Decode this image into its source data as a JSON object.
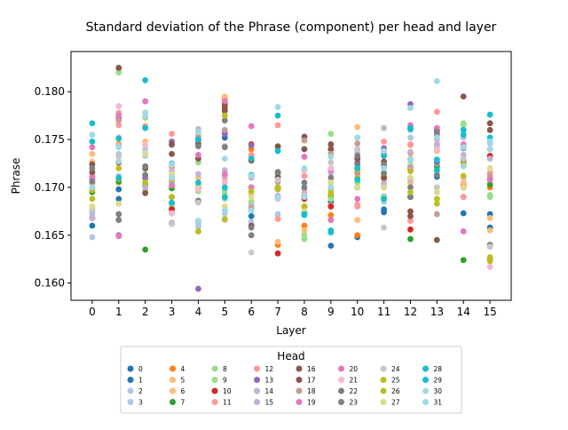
{
  "chart_data": {
    "type": "scatter",
    "title": "Standard deviation of the Phrase (component) per head and layer",
    "xlabel": "Layer",
    "ylabel": "Phrase",
    "xlim": [
      -0.8,
      15.8
    ],
    "ylim": [
      0.1582,
      0.1842
    ],
    "xticks": [
      "0",
      "1",
      "2",
      "3",
      "4",
      "5",
      "6",
      "7",
      "8",
      "9",
      "10",
      "11",
      "12",
      "13",
      "14",
      "15"
    ],
    "yticks": [
      "0.160",
      "0.165",
      "0.170",
      "0.175",
      "0.180"
    ],
    "ytick_values": [
      0.16,
      0.165,
      0.17,
      0.175,
      0.18
    ],
    "legend": {
      "title": "Head",
      "placement": "below",
      "ncol": 8,
      "entries": [
        {
          "label": "0",
          "color": "#1f77b4"
        },
        {
          "label": "1",
          "color": "#1f77b4"
        },
        {
          "label": "2",
          "color": "#aec7e8"
        },
        {
          "label": "3",
          "color": "#aec7e8"
        },
        {
          "label": "4",
          "color": "#ff7f0e"
        },
        {
          "label": "5",
          "color": "#ffbb78"
        },
        {
          "label": "6",
          "color": "#ffbb78"
        },
        {
          "label": "7",
          "color": "#2ca02c"
        },
        {
          "label": "8",
          "color": "#98df8a"
        },
        {
          "label": "9",
          "color": "#98df8a"
        },
        {
          "label": "10",
          "color": "#d62728"
        },
        {
          "label": "11",
          "color": "#ff9896"
        },
        {
          "label": "12",
          "color": "#ff9896"
        },
        {
          "label": "13",
          "color": "#9467bd"
        },
        {
          "label": "14",
          "color": "#c5b0d5"
        },
        {
          "label": "15",
          "color": "#c5b0d5"
        },
        {
          "label": "16",
          "color": "#8c564b"
        },
        {
          "label": "17",
          "color": "#8c564b"
        },
        {
          "label": "18",
          "color": "#c49c94"
        },
        {
          "label": "19",
          "color": "#e377c2"
        },
        {
          "label": "20",
          "color": "#e377c2"
        },
        {
          "label": "21",
          "color": "#f7b6d2"
        },
        {
          "label": "22",
          "color": "#7f7f7f"
        },
        {
          "label": "23",
          "color": "#7f7f7f"
        },
        {
          "label": "24",
          "color": "#c7c7c7"
        },
        {
          "label": "25",
          "color": "#bcbd22"
        },
        {
          "label": "26",
          "color": "#bcbd22"
        },
        {
          "label": "27",
          "color": "#dbdb8d"
        },
        {
          "label": "28",
          "color": "#17becf"
        },
        {
          "label": "29",
          "color": "#17becf"
        },
        {
          "label": "30",
          "color": "#9edae5"
        },
        {
          "label": "31",
          "color": "#9edae5"
        }
      ]
    },
    "series_by_layer": [
      [
        0.1668,
        0.166,
        0.1648,
        0.1672,
        0.1708,
        0.1735,
        0.1727,
        0.1695,
        0.1712,
        0.1715,
        0.1668,
        0.1712,
        0.1748,
        0.1705,
        0.1675,
        0.1668,
        0.1724,
        0.1716,
        0.17,
        0.1742,
        0.171,
        0.1703,
        0.172,
        0.1706,
        0.1677,
        0.1697,
        0.1688,
        0.168,
        0.1748,
        0.1767,
        0.1755,
        0.17
      ],
      [
        0.1688,
        0.1698,
        0.1735,
        0.1712,
        0.1745,
        0.1744,
        0.1705,
        0.1706,
        0.182,
        0.1823,
        0.1726,
        0.1765,
        0.1778,
        0.165,
        0.1752,
        0.1743,
        0.1825,
        0.1772,
        0.177,
        0.1649,
        0.1775,
        0.1785,
        0.1672,
        0.1666,
        0.1732,
        0.1709,
        0.172,
        0.1683,
        0.171,
        0.1751,
        0.1742,
        0.1727
      ],
      [
        0.1702,
        0.171,
        0.1733,
        0.174,
        0.1695,
        0.1705,
        0.1748,
        0.1635,
        0.1719,
        0.1704,
        0.1722,
        0.1764,
        0.1712,
        0.179,
        0.1698,
        0.17,
        0.1694,
        0.172,
        0.1778,
        0.1712,
        0.179,
        0.1744,
        0.1722,
        0.1713,
        0.1736,
        0.1773,
        0.1705,
        0.1735,
        0.1812,
        0.1762,
        0.1774,
        0.1778
      ],
      [
        0.1705,
        0.1683,
        0.1704,
        0.1744,
        0.1673,
        0.1682,
        0.1714,
        0.1699,
        0.1678,
        0.168,
        0.1677,
        0.1756,
        0.1721,
        0.1748,
        0.1711,
        0.1717,
        0.1745,
        0.1735,
        0.1663,
        0.1684,
        0.1702,
        0.1673,
        0.169,
        0.1662,
        0.1662,
        0.169,
        0.1708,
        0.1714,
        0.1684,
        0.1725,
        0.1724,
        0.171
      ],
      [
        0.1686,
        0.175,
        0.1659,
        0.1662,
        0.1703,
        0.1757,
        0.171,
        0.17,
        0.1696,
        0.1726,
        0.1665,
        0.1744,
        0.1752,
        0.1594,
        0.1761,
        0.1714,
        0.173,
        0.1746,
        0.1753,
        0.1734,
        0.17,
        0.1698,
        0.1686,
        0.1743,
        0.1684,
        0.1654,
        0.1654,
        0.1702,
        0.1705,
        0.175,
        0.1665,
        0.1758
      ],
      [
        0.1752,
        0.1757,
        0.1673,
        0.1698,
        0.1793,
        0.1795,
        0.1783,
        0.1782,
        0.1688,
        0.1695,
        0.1787,
        0.1743,
        0.171,
        0.1756,
        0.1713,
        0.1718,
        0.1785,
        0.178,
        0.176,
        0.179,
        0.1714,
        0.1705,
        0.177,
        0.1742,
        0.1666,
        0.1775,
        0.1667,
        0.168,
        0.17,
        0.169,
        0.173,
        0.1676
      ],
      [
        0.167,
        0.168,
        0.1664,
        0.1684,
        0.174,
        0.1732,
        0.1693,
        0.17,
        0.1685,
        0.168,
        0.1745,
        0.1734,
        0.1732,
        0.1744,
        0.168,
        0.171,
        0.1728,
        0.166,
        0.1678,
        0.1764,
        0.17,
        0.165,
        0.1658,
        0.165,
        0.1632,
        0.1696,
        0.1676,
        0.169,
        0.173,
        0.1713,
        0.1712,
        0.1676
      ],
      [
        0.17,
        0.1698,
        0.1672,
        0.1688,
        0.164,
        0.1643,
        0.17,
        0.17,
        0.1714,
        0.1742,
        0.1631,
        0.1765,
        0.1667,
        0.1716,
        0.171,
        0.17,
        0.1743,
        0.1711,
        0.1706,
        0.1691,
        0.169,
        0.1688,
        0.17,
        0.1716,
        0.1708,
        0.1698,
        0.17,
        0.169,
        0.1775,
        0.1738,
        0.1784,
        0.169
      ],
      [
        0.1673,
        0.168,
        0.1698,
        0.168,
        0.166,
        0.1655,
        0.169,
        0.169,
        0.1646,
        0.165,
        0.1688,
        0.1694,
        0.1712,
        0.174,
        0.168,
        0.169,
        0.1753,
        0.174,
        0.1749,
        0.1732,
        0.1718,
        0.1718,
        0.17,
        0.1705,
        0.1692,
        0.168,
        0.1675,
        0.1675,
        0.1671,
        0.1672,
        0.172,
        0.169
      ],
      [
        0.1639,
        0.1685,
        0.1694,
        0.17,
        0.1671,
        0.1681,
        0.1688,
        0.1691,
        0.1756,
        0.1688,
        0.168,
        0.1666,
        0.1705,
        0.174,
        0.1694,
        0.1715,
        0.1745,
        0.174,
        0.1735,
        0.1718,
        0.1666,
        0.172,
        0.17,
        0.171,
        0.1726,
        0.1697,
        0.1693,
        0.1705,
        0.1655,
        0.1653,
        0.1732,
        0.17
      ],
      [
        0.1648,
        0.17,
        0.171,
        0.1733,
        0.165,
        0.1763,
        0.1666,
        0.17,
        0.1714,
        0.1705,
        0.17,
        0.168,
        0.1682,
        0.1726,
        0.1736,
        0.17,
        0.174,
        0.173,
        0.1746,
        0.1715,
        0.1688,
        0.172,
        0.1733,
        0.1724,
        0.174,
        0.171,
        0.1718,
        0.17,
        0.172,
        0.1708,
        0.1752,
        0.1752
      ],
      [
        0.1674,
        0.1677,
        0.1691,
        0.1685,
        0.1715,
        0.1714,
        0.1708,
        0.1712,
        0.1712,
        0.169,
        0.1733,
        0.1748,
        0.171,
        0.1741,
        0.1704,
        0.1762,
        0.1727,
        0.171,
        0.1723,
        0.17,
        0.1735,
        0.17,
        0.1724,
        0.1715,
        0.1658,
        0.1688,
        0.1688,
        0.17,
        0.1733,
        0.1688,
        0.1738,
        0.172
      ],
      [
        0.169,
        0.172,
        0.173,
        0.1752,
        0.1736,
        0.1744,
        0.1705,
        0.1646,
        0.1723,
        0.1717,
        0.1656,
        0.1745,
        0.1665,
        0.1787,
        0.1708,
        0.1737,
        0.167,
        0.1675,
        0.171,
        0.1765,
        0.172,
        0.1718,
        0.17,
        0.169,
        0.176,
        0.1717,
        0.1695,
        0.171,
        0.1761,
        0.1762,
        0.1783,
        0.1728
      ],
      [
        0.1711,
        0.1718,
        0.1727,
        0.1743,
        0.1757,
        0.1751,
        0.1738,
        0.1722,
        0.17,
        0.1725,
        0.176,
        0.1779,
        0.1745,
        0.1726,
        0.1744,
        0.175,
        0.1755,
        0.1645,
        0.1672,
        0.1762,
        0.1756,
        0.174,
        0.1758,
        0.1713,
        0.17,
        0.1683,
        0.1688,
        0.1695,
        0.1718,
        0.1729,
        0.1752,
        0.1811
      ],
      [
        0.1673,
        0.169,
        0.176,
        0.1752,
        0.1703,
        0.1705,
        0.169,
        0.1624,
        0.1765,
        0.1767,
        0.1743,
        0.169,
        0.17,
        0.1741,
        0.171,
        0.1734,
        0.1795,
        0.17,
        0.171,
        0.1654,
        0.1745,
        0.171,
        0.1755,
        0.1727,
        0.173,
        0.1724,
        0.1712,
        0.17,
        0.176,
        0.1755,
        0.1742,
        0.1722
      ],
      [
        0.1672,
        0.1658,
        0.1746,
        0.1748,
        0.17,
        0.1668,
        0.1655,
        0.1703,
        0.169,
        0.1692,
        0.1733,
        0.171,
        0.1715,
        0.174,
        0.172,
        0.173,
        0.176,
        0.1767,
        0.1712,
        0.174,
        0.1708,
        0.1617,
        0.164,
        0.1625,
        0.1638,
        0.1627,
        0.1623,
        0.172,
        0.1776,
        0.1752,
        0.1748,
        0.174
      ]
    ]
  }
}
